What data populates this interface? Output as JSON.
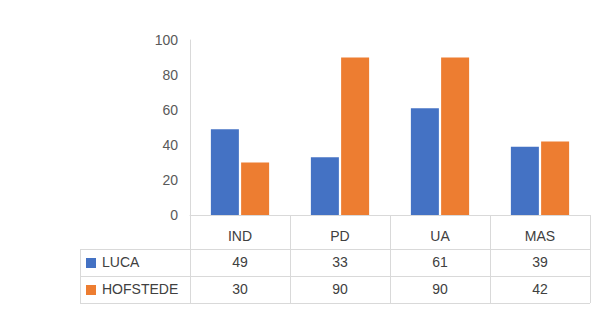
{
  "chart_data": {
    "type": "bar",
    "categories": [
      "IND",
      "PD",
      "UA",
      "MAS"
    ],
    "series": [
      {
        "name": "LUCA",
        "color": "#4472c4",
        "values": [
          49,
          33,
          61,
          39
        ]
      },
      {
        "name": "HOFSTEDE",
        "color": "#ed7d31",
        "values": [
          30,
          90,
          90,
          42
        ]
      }
    ],
    "ylim": [
      0,
      100
    ],
    "yticks": [
      0,
      20,
      40,
      60,
      80,
      100
    ],
    "grid": false
  }
}
